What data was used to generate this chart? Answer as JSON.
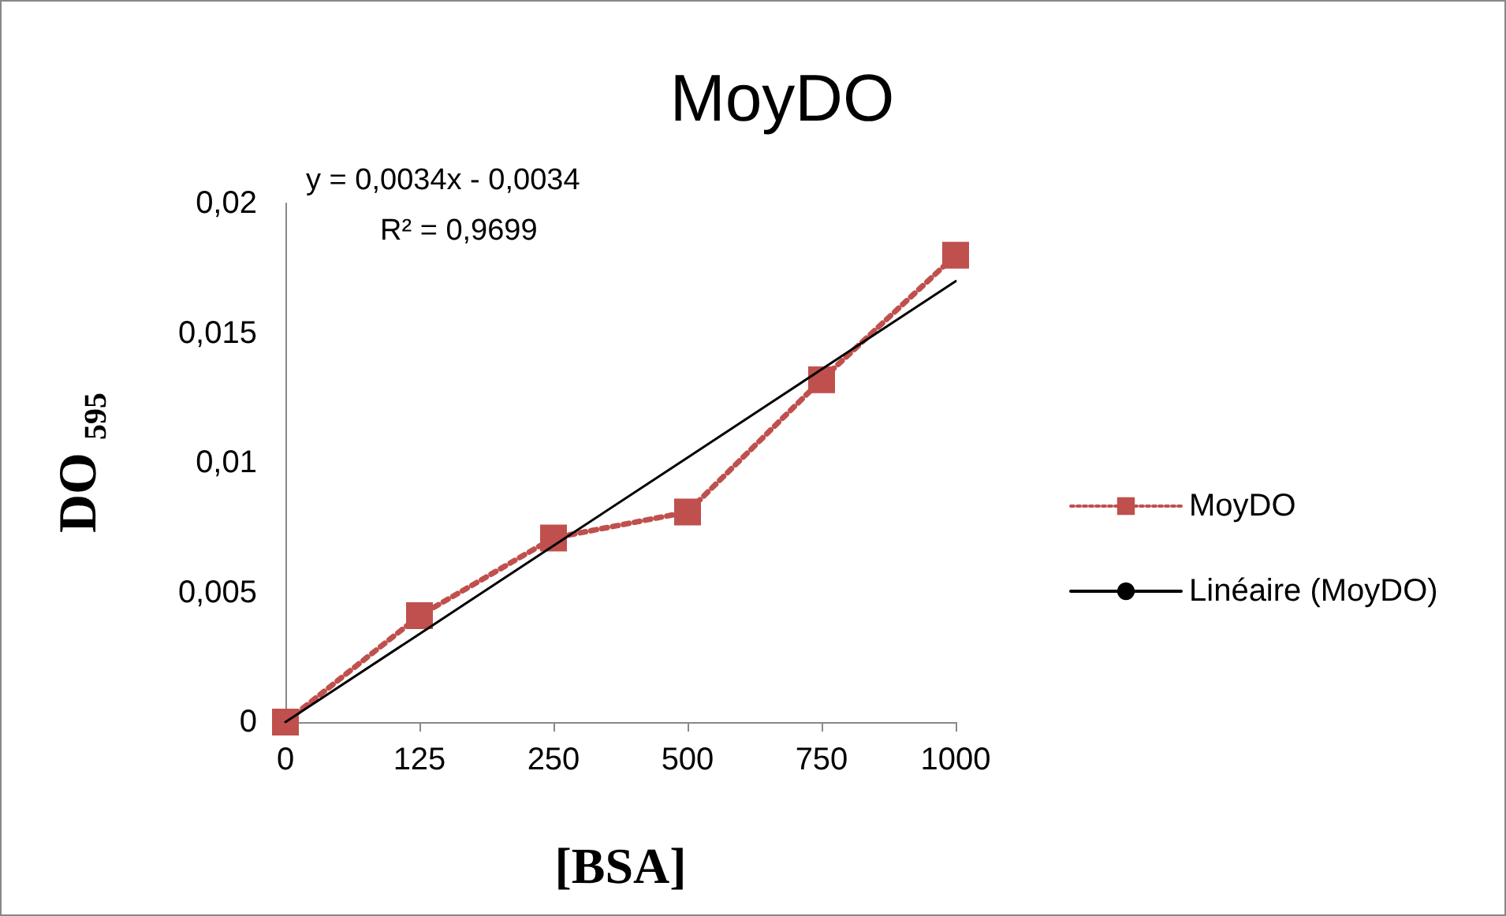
{
  "chart_data": {
    "type": "line",
    "title": "MoyDO",
    "xlabel": "[BSA]",
    "ylabel": "DO$_{595}$",
    "categories": [
      "0",
      "125",
      "250",
      "500",
      "750",
      "1000"
    ],
    "series": [
      {
        "name": "MoyDO",
        "color": "#c0504d",
        "values": [
          0,
          0.0041,
          0.0071,
          0.0081,
          0.0132,
          0.018
        ],
        "marker": "square",
        "line_style": "dotted"
      },
      {
        "name": "Linéaire (MoyDO)",
        "type": "line",
        "color": "#000000",
        "values": [
          0,
          0.0034,
          0.0068,
          0.0102,
          0.0136,
          0.017
        ],
        "marker": "none",
        "line_style": "solid"
      }
    ],
    "ylim": [
      0,
      0.02
    ],
    "yticks": [
      {
        "value": 0,
        "label": "0"
      },
      {
        "value": 0.005,
        "label": "0,005"
      },
      {
        "value": 0.01,
        "label": "0,01"
      },
      {
        "value": 0.015,
        "label": "0,015"
      },
      {
        "value": 0.02,
        "label": "0,02"
      }
    ],
    "annotations": [
      "y = 0,0034x - 0,0034",
      "R² = 0,9699"
    ],
    "grid": false,
    "legend": "right"
  }
}
